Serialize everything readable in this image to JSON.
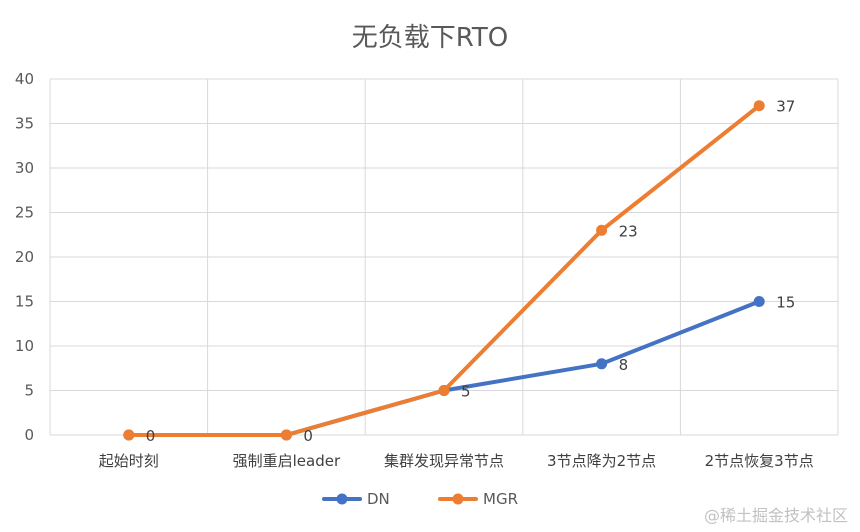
{
  "chart_data": {
    "type": "line",
    "title": "无负载下RTO",
    "categories": [
      "起始时刻",
      "强制重启leader",
      "集群发现异常节点",
      "3节点降为2节点",
      "2节点恢复3节点"
    ],
    "series": [
      {
        "name": "DN",
        "values": [
          0,
          0,
          5,
          8,
          15
        ],
        "color": "#4472C4",
        "labeled_indices": [
          2,
          3,
          4
        ]
      },
      {
        "name": "MGR",
        "values": [
          0,
          0,
          5,
          23,
          37
        ],
        "color": "#ED7D31",
        "labeled_indices": [
          0,
          1,
          3,
          4
        ]
      }
    ],
    "ylim": [
      0,
      40
    ],
    "yticks": [
      0,
      5,
      10,
      15,
      20,
      25,
      30,
      35,
      40
    ],
    "grid": true,
    "legend_position": "bottom"
  },
  "watermark": "@稀土掘金技术社区"
}
